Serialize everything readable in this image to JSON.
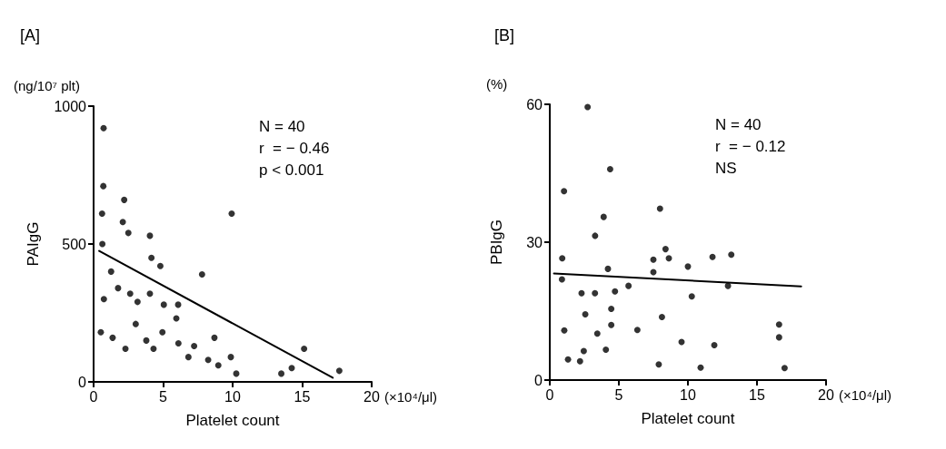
{
  "chart_data": [
    {
      "type": "scatter",
      "title": "[A]",
      "xlabel": "Platelet count",
      "ylabel": "PAIgG",
      "annotations": [
        "(ng/10⁷ plt)",
        "(×10⁴/μl)",
        "N = 40",
        "r  = − 0.46",
        "p < 0.001"
      ],
      "xlim": [
        0,
        20
      ],
      "xticks": [
        0,
        5,
        10,
        15,
        20
      ],
      "ylim": [
        0,
        1000
      ],
      "yticks": [
        0,
        500,
        1000
      ],
      "grid": false,
      "marker": "circle",
      "series": [
        {
          "color": "#000000",
          "x": [
            0.72,
            0.7,
            0.61,
            2.2,
            2.1,
            2.5,
            4.05,
            9.93,
            0.63,
            4.16,
            4.8,
            1.26,
            7.8,
            1.76,
            0.74,
            2.63,
            3.16,
            4.05,
            5.05,
            6.08,
            5.95,
            3.03,
            0.52,
            4.95,
            1.37,
            3.79,
            8.69,
            2.29,
            4.31,
            6.1,
            7.23,
            6.82,
            8.24,
            9.87,
            8.97,
            10.26,
            15.14,
            14.25,
            13.5,
            17.67
          ],
          "values": [
            920,
            710,
            610,
            660,
            580,
            540,
            530,
            610,
            500,
            450,
            420,
            400,
            390,
            340,
            300,
            320,
            290,
            320,
            280,
            280,
            230,
            210,
            180,
            180,
            160,
            150,
            160,
            120,
            120,
            140,
            130,
            90,
            80,
            90,
            60,
            30,
            120,
            50,
            30,
            40
          ]
        },
        {
          "type": "line",
          "marker": "none",
          "line_style": "solid",
          "color": "#000000",
          "x": [
            0.4,
            17.2
          ],
          "values": [
            475,
            15
          ]
        }
      ]
    },
    {
      "type": "scatter",
      "title": "[B]",
      "xlabel": "Platelet count",
      "ylabel": "PBIgG",
      "annotations": [
        "(%)",
        "(×10⁴/μl)",
        "N = 40",
        "r  = − 0.12",
        "NS"
      ],
      "xlim": [
        0,
        20
      ],
      "xticks": [
        0,
        5,
        10,
        15,
        20
      ],
      "ylim": [
        0,
        60
      ],
      "yticks": [
        0,
        30,
        60
      ],
      "grid": false,
      "marker": "circle",
      "series": [
        {
          "color": "#000000",
          "x": [
            2.74,
            4.37,
            1.03,
            3.9,
            7.98,
            3.28,
            0.9,
            4.21,
            0.88,
            8.38,
            8.62,
            7.5,
            7.5,
            10.0,
            11.78,
            13.14,
            12.9,
            10.28,
            5.7,
            4.72,
            2.3,
            3.27,
            4.45,
            2.57,
            8.12,
            1.05,
            3.44,
            4.45,
            6.34,
            9.54,
            11.91,
            4.06,
            2.46,
            1.32,
            2.19,
            7.89,
            10.92,
            16.6,
            16.6,
            17.0
          ],
          "values": [
            59.4,
            45.9,
            41.1,
            35.5,
            37.3,
            31.4,
            26.5,
            24.2,
            21.9,
            28.5,
            26.5,
            26.2,
            23.5,
            24.7,
            26.8,
            27.3,
            20.5,
            18.2,
            20.5,
            19.3,
            18.9,
            18.9,
            15.5,
            14.3,
            13.7,
            10.8,
            10.1,
            12.0,
            10.9,
            8.3,
            7.6,
            6.6,
            6.3,
            4.5,
            4.1,
            3.4,
            2.7,
            12.1,
            9.3,
            2.6
          ]
        },
        {
          "type": "line",
          "marker": "none",
          "line_style": "solid",
          "color": "#000000",
          "x": [
            0.3,
            18.2
          ],
          "values": [
            23.2,
            20.4
          ]
        }
      ]
    }
  ]
}
